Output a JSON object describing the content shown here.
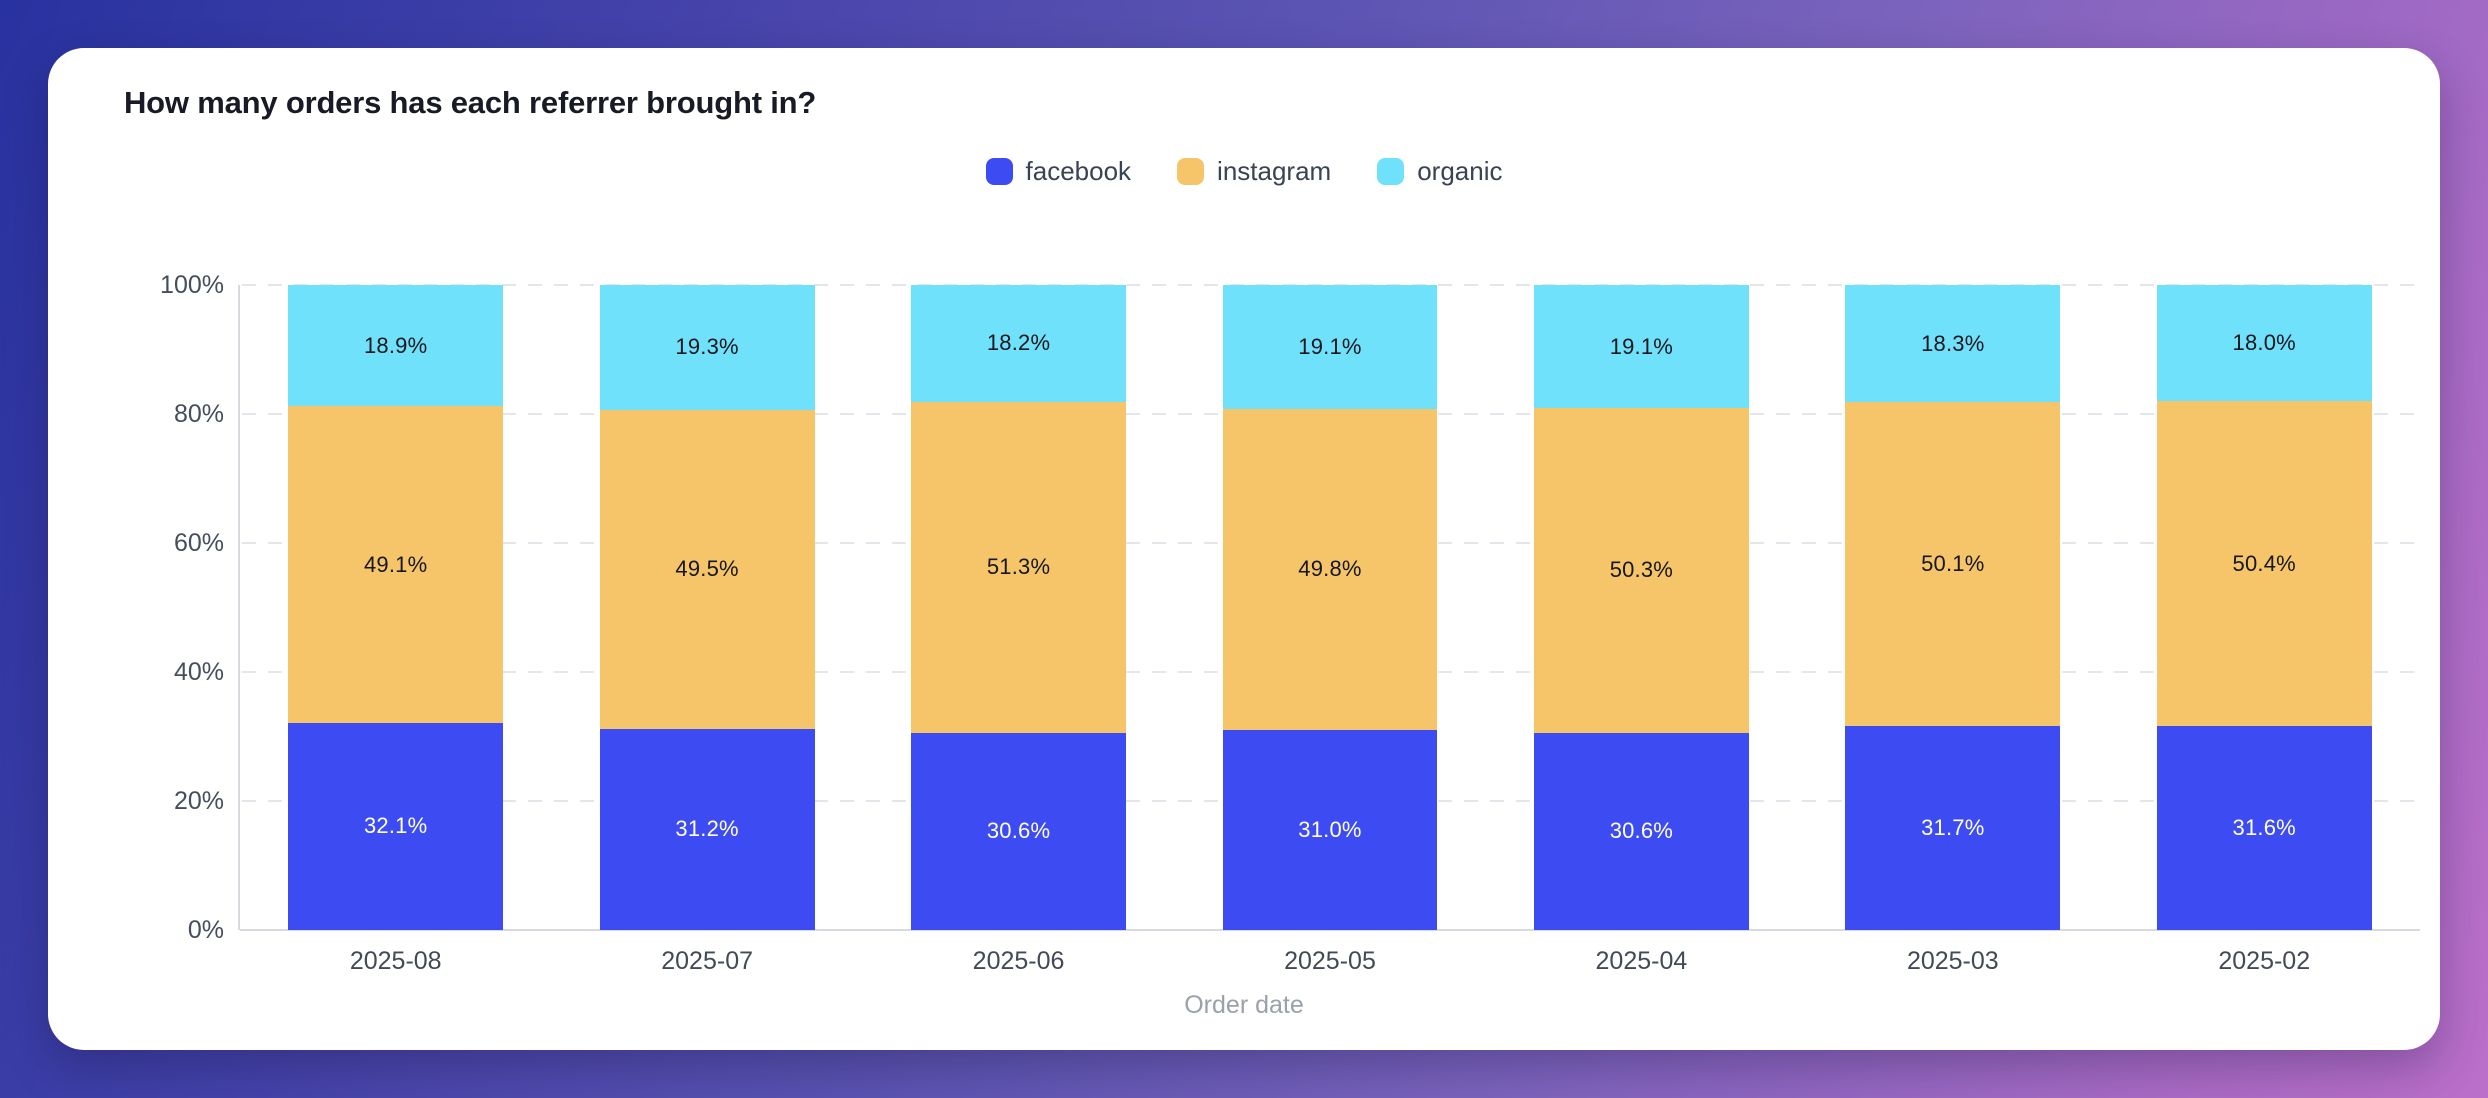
{
  "card": {
    "title": "How many orders has each referrer brought in?"
  },
  "theme": {
    "background_gradient": [
      "#2832a0",
      "#5b54b2",
      "#7a6ec4",
      "#b56ec9"
    ],
    "card_background": "#ffffff",
    "grid_color": "#e3e6eb",
    "axis_color": "#d7dbe0",
    "tick_text_color": "#454e5c"
  },
  "chart_data": {
    "type": "bar",
    "stacked": true,
    "title": "How many orders has each referrer brought in?",
    "xlabel": "Order date",
    "ylabel": "",
    "ylim": [
      0,
      100
    ],
    "grid": "dashed-horizontal",
    "legend_position": "top-center",
    "value_suffix": "%",
    "y_ticks": [
      "100%",
      "80%",
      "60%",
      "40%",
      "20%",
      "0%"
    ],
    "categories": [
      "2025-08",
      "2025-07",
      "2025-06",
      "2025-05",
      "2025-04",
      "2025-03",
      "2025-02"
    ],
    "series": [
      {
        "name": "facebook",
        "color": "#3d4cf2",
        "label_color": "#ffffff",
        "values": [
          32.1,
          31.2,
          30.6,
          31.0,
          30.6,
          31.7,
          31.6
        ]
      },
      {
        "name": "instagram",
        "color": "#f6c569",
        "label_color": "#15171c",
        "values": [
          49.1,
          49.5,
          51.3,
          49.8,
          50.3,
          50.1,
          50.4
        ]
      },
      {
        "name": "organic",
        "color": "#70e1fb",
        "label_color": "#15171c",
        "values": [
          18.9,
          19.3,
          18.2,
          19.1,
          19.1,
          18.3,
          18.0
        ]
      }
    ]
  }
}
